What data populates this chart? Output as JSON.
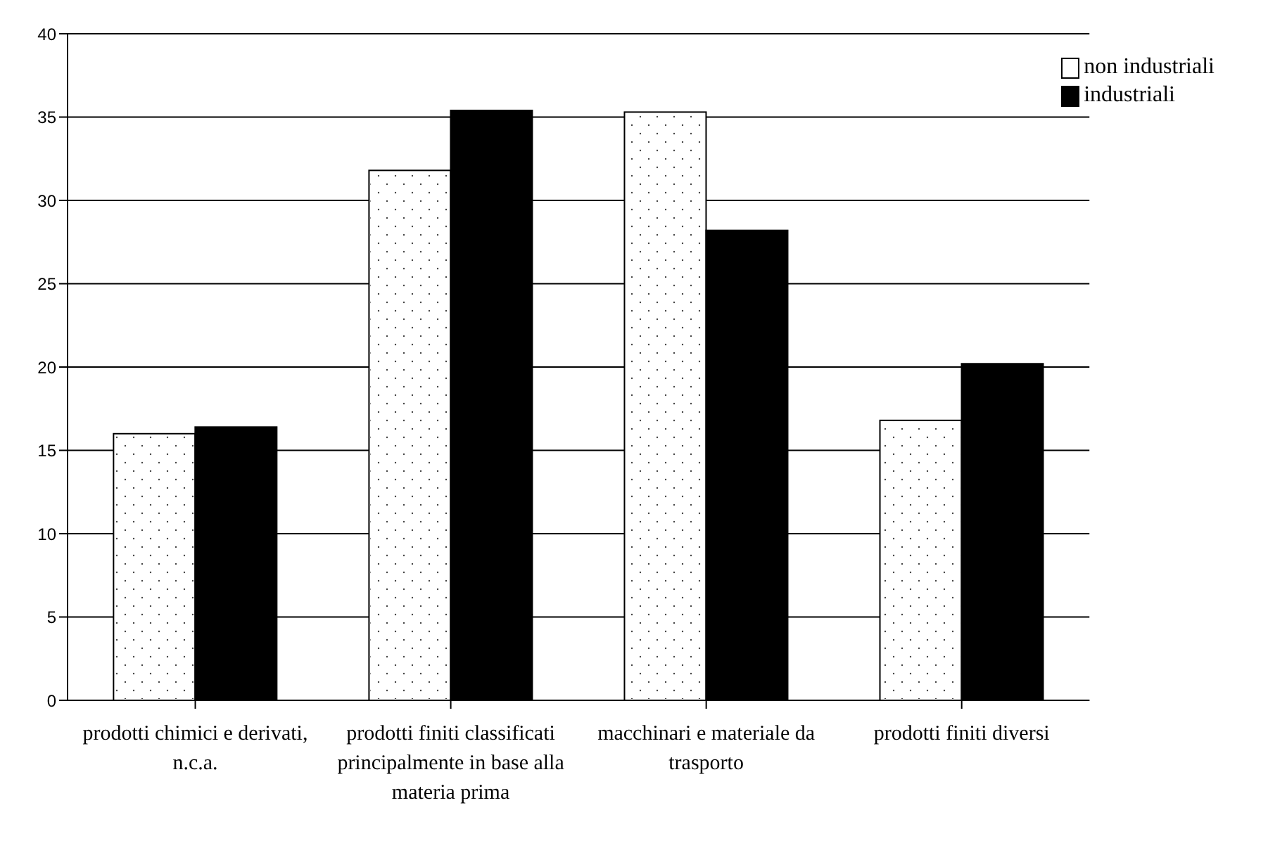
{
  "chart_data": {
    "type": "bar",
    "categories": [
      "prodotti chimici e derivati, n.c.a.",
      "prodotti finiti classificati principalmente in base alla materia prima",
      "macchinari e materiale da trasporto",
      "prodotti finiti diversi"
    ],
    "series": [
      {
        "name": "non industriali",
        "color": "#ffffff",
        "values": [
          16.0,
          31.8,
          35.3,
          16.8
        ]
      },
      {
        "name": "industriali",
        "color": "#000000",
        "values": [
          16.4,
          35.4,
          28.2,
          20.2
        ]
      }
    ],
    "ylim": [
      0,
      40
    ],
    "yticks": [
      0,
      5,
      10,
      15,
      20,
      25,
      30,
      35,
      40
    ],
    "grid": "y",
    "legend": "top right"
  }
}
